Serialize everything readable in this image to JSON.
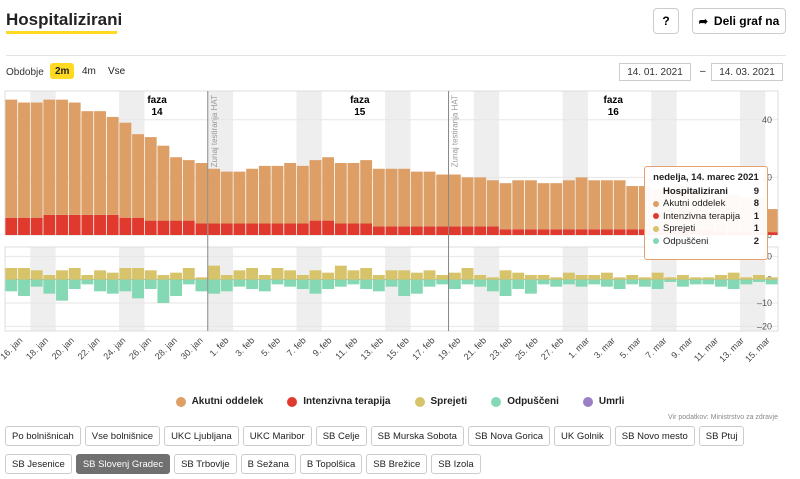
{
  "header": {
    "title": "Hospitalizirani",
    "help_label": "?",
    "share_label": "Deli graf na"
  },
  "period": {
    "label": "Obdobje",
    "options": [
      "2m",
      "4m",
      "Vse"
    ],
    "active": "2m",
    "date_from": "14. 01. 2021",
    "date_separator": "–",
    "date_to": "14. 03. 2021"
  },
  "colors": {
    "acute": "#dd9f66",
    "icu": "#e03a2e",
    "admitted": "#d6c36a",
    "discharged": "#84d8b3",
    "deceased": "#9b7fc4",
    "band": "#eeeeee",
    "accent": "#ffd922"
  },
  "chart_data": {
    "type": "bar",
    "x_ticks": [
      "16. jan",
      "18. jan",
      "20. jan",
      "22. jan",
      "24. jan",
      "26. jan",
      "28. jan",
      "30. jan",
      "1. feb",
      "3. feb",
      "5. feb",
      "7. feb",
      "9. feb",
      "11. feb",
      "13. feb",
      "15. feb",
      "17. feb",
      "19. feb",
      "21. feb",
      "23. feb",
      "25. feb",
      "27. feb",
      "1. mar",
      "3. mar",
      "5. mar",
      "7. mar",
      "9. mar",
      "11. mar",
      "13. mar",
      "15. mar"
    ],
    "top_y_ticks": [
      0,
      20,
      40
    ],
    "top_ylim": [
      0,
      50
    ],
    "bottom_y_ticks": [
      -20,
      -10,
      0,
      10
    ],
    "bottom_ylim": [
      -22,
      14
    ],
    "phases": [
      {
        "label": "faza",
        "number": "14"
      },
      {
        "label": "faza",
        "number": "15"
      },
      {
        "label": "faza",
        "number": "16"
      }
    ],
    "annotations": [
      "Zunaj testiranja HAT",
      "Zunaj testiranja HAT"
    ],
    "series": [
      {
        "name": "Akutni oddelek",
        "values": [
          41,
          40,
          40,
          40,
          40,
          39,
          36,
          36,
          34,
          33,
          29,
          29,
          26,
          22,
          21,
          21,
          19,
          18,
          18,
          19,
          20,
          20,
          21,
          20,
          21,
          22,
          21,
          21,
          22,
          20,
          20,
          20,
          19,
          19,
          18,
          18,
          17,
          17,
          16,
          16,
          17,
          17,
          16,
          16,
          17,
          18,
          17,
          17,
          17,
          15,
          15,
          14,
          14,
          15,
          14,
          13,
          12,
          13,
          12,
          12,
          8
        ]
      },
      {
        "name": "Intenzivna terapija",
        "values": [
          6,
          6,
          6,
          7,
          7,
          7,
          7,
          7,
          7,
          6,
          6,
          5,
          5,
          5,
          5,
          4,
          4,
          4,
          4,
          4,
          4,
          4,
          4,
          4,
          5,
          5,
          4,
          4,
          4,
          3,
          3,
          3,
          3,
          3,
          3,
          3,
          3,
          3,
          3,
          2,
          2,
          2,
          2,
          2,
          2,
          2,
          2,
          2,
          2,
          2,
          2,
          2,
          2,
          2,
          2,
          2,
          1,
          1,
          1,
          1,
          1
        ]
      },
      {
        "name": "Sprejeti",
        "values": [
          5,
          5,
          4,
          2,
          4,
          5,
          2,
          4,
          3,
          5,
          5,
          4,
          2,
          3,
          5,
          1,
          6,
          2,
          4,
          5,
          2,
          5,
          4,
          2,
          4,
          3,
          6,
          4,
          5,
          2,
          4,
          4,
          3,
          4,
          2,
          3,
          5,
          2,
          1,
          4,
          3,
          2,
          2,
          1,
          3,
          2,
          2,
          3,
          1,
          2,
          1,
          3,
          1,
          2,
          1,
          1,
          2,
          3,
          1,
          2,
          1
        ]
      },
      {
        "name": "Odpuščeni",
        "values": [
          -5,
          -7,
          -3,
          -6,
          -9,
          -4,
          -2,
          -5,
          -6,
          -5,
          -8,
          -4,
          -10,
          -7,
          -2,
          -5,
          -6,
          -5,
          -3,
          -4,
          -5,
          -2,
          -3,
          -4,
          -6,
          -4,
          -3,
          -2,
          -4,
          -5,
          -3,
          -7,
          -6,
          -3,
          -2,
          -4,
          -2,
          -3,
          -5,
          -7,
          -4,
          -6,
          -2,
          -3,
          -2,
          -3,
          -2,
          -3,
          -4,
          -2,
          -3,
          -4,
          -1,
          -3,
          -2,
          -2,
          -3,
          -4,
          -2,
          -1,
          -2
        ]
      },
      {
        "name": "Umrli",
        "values": []
      }
    ]
  },
  "tooltip": {
    "title": "nedelja, 14. marec 2021",
    "header_label": "Hospitalizirani",
    "header_value": "9",
    "rows": [
      {
        "label": "Akutni oddelek",
        "value": "8"
      },
      {
        "label": "Intenzivna terapija",
        "value": "1"
      },
      {
        "label": "Sprejeti",
        "value": "1"
      },
      {
        "label": "Odpuščeni",
        "value": "2"
      }
    ]
  },
  "legend": [
    "Akutni oddelek",
    "Intenzivna terapija",
    "Sprejeti",
    "Odpuščeni",
    "Umrli"
  ],
  "source": "Vir podatkov: Ministrstvo za zdravje",
  "filters": [
    "Po bolnišnicah",
    "Vse bolnišnice",
    "UKC Ljubljana",
    "UKC Maribor",
    "SB Celje",
    "SB Murska Sobota",
    "SB Nova Gorica",
    "UK Golnik",
    "SB Novo mesto",
    "SB Ptuj",
    "SB Jesenice",
    "SB Slovenj Gradec",
    "SB Trbovlje",
    "B Sežana",
    "B Topolšica",
    "SB Brežice",
    "SB Izola"
  ],
  "active_filter": "SB Slovenj Gradec"
}
